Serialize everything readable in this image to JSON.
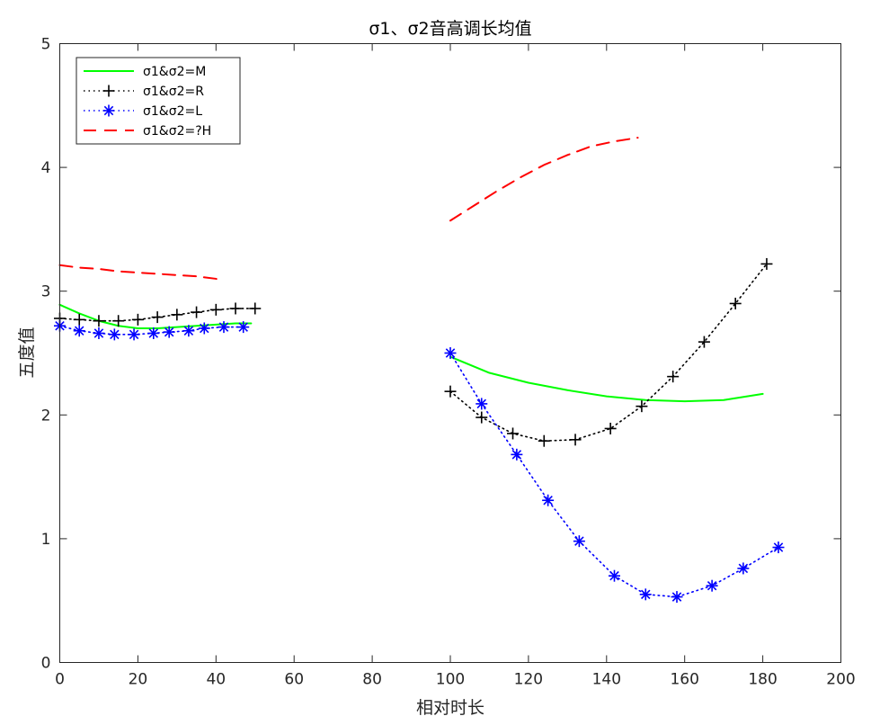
{
  "chart_data": {
    "type": "line",
    "title": "σ1、σ2音高调长均值",
    "xlabel": "相对时长",
    "ylabel": "五度值",
    "xlim": [
      0,
      200
    ],
    "ylim": [
      0,
      5
    ],
    "xticks": [
      0,
      20,
      40,
      60,
      80,
      100,
      120,
      140,
      160,
      180,
      200
    ],
    "yticks": [
      0,
      1,
      2,
      3,
      4,
      5
    ],
    "grid": false,
    "legend_position": "top-left",
    "series": [
      {
        "name": "σ1&σ2=M",
        "color": "#00ff00",
        "style": "solid",
        "marker": "none",
        "segments": [
          {
            "x": [
              0,
              5,
              10,
              15,
              20,
              25,
              30,
              35,
              40,
              45,
              49
            ],
            "y": [
              2.89,
              2.82,
              2.76,
              2.72,
              2.7,
              2.7,
              2.71,
              2.72,
              2.73,
              2.74,
              2.74
            ]
          },
          {
            "x": [
              100,
              110,
              120,
              130,
              140,
              150,
              160,
              170,
              180
            ],
            "y": [
              2.47,
              2.34,
              2.26,
              2.2,
              2.15,
              2.12,
              2.11,
              2.12,
              2.17
            ]
          }
        ]
      },
      {
        "name": "σ1&σ2=R",
        "color": "#000000",
        "style": "dotted",
        "marker": "plus",
        "segments": [
          {
            "x": [
              0,
              5,
              10,
              15,
              20,
              25,
              30,
              35,
              40,
              45,
              50
            ],
            "y": [
              2.78,
              2.77,
              2.76,
              2.76,
              2.77,
              2.79,
              2.81,
              2.83,
              2.85,
              2.86,
              2.86
            ]
          },
          {
            "x": [
              100,
              108,
              116,
              124,
              132,
              141,
              149,
              157,
              165,
              173,
              181
            ],
            "y": [
              2.19,
              1.98,
              1.85,
              1.79,
              1.8,
              1.89,
              2.07,
              2.31,
              2.59,
              2.9,
              3.22
            ]
          }
        ]
      },
      {
        "name": "σ1&σ2=L",
        "color": "#0000ff",
        "style": "dotted",
        "marker": "asterisk",
        "segments": [
          {
            "x": [
              0,
              5,
              10,
              14,
              19,
              24,
              28,
              33,
              37,
              42,
              47
            ],
            "y": [
              2.72,
              2.68,
              2.66,
              2.65,
              2.65,
              2.66,
              2.67,
              2.68,
              2.7,
              2.71,
              2.71
            ]
          },
          {
            "x": [
              100,
              108,
              117,
              125,
              133,
              142,
              150,
              158,
              167,
              175,
              184
            ],
            "y": [
              2.5,
              2.09,
              1.68,
              1.31,
              0.98,
              0.7,
              0.55,
              0.53,
              0.62,
              0.76,
              0.93
            ]
          }
        ]
      },
      {
        "name": "σ1&σ2=?H",
        "color": "#ff0000",
        "style": "dashed",
        "marker": "none",
        "segments": [
          {
            "x": [
              0,
              5,
              10,
              15,
              20,
              25,
              30,
              35,
              40,
              42
            ],
            "y": [
              3.21,
              3.19,
              3.18,
              3.16,
              3.15,
              3.14,
              3.13,
              3.12,
              3.1,
              3.08
            ]
          },
          {
            "x": [
              100,
              106,
              112,
              118,
              124,
              130,
              136,
              142,
              148
            ],
            "y": [
              3.57,
              3.69,
              3.81,
              3.92,
              4.02,
              4.1,
              4.17,
              4.21,
              4.24
            ]
          }
        ]
      }
    ]
  }
}
